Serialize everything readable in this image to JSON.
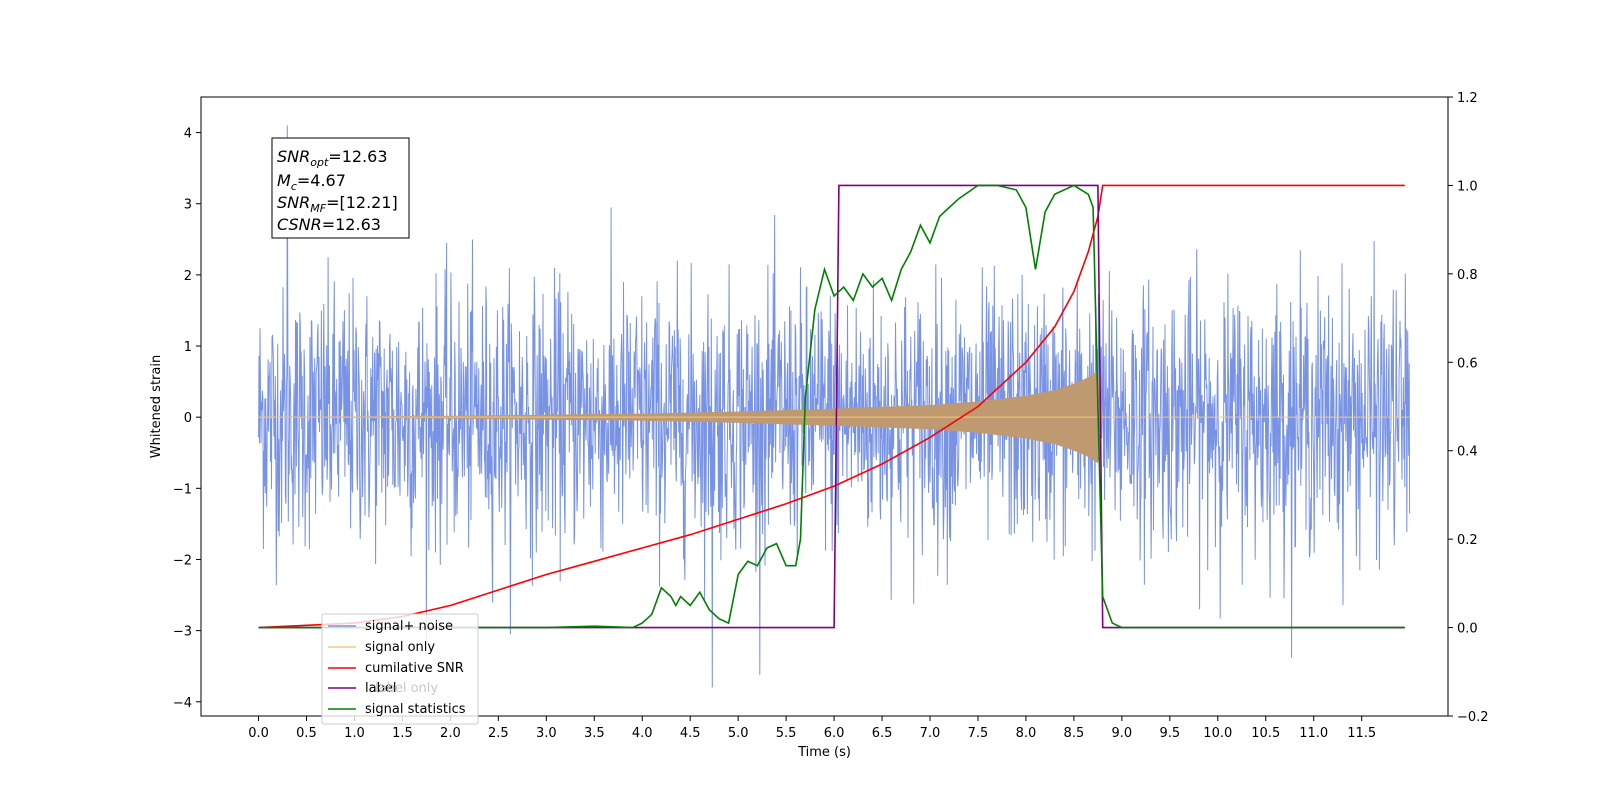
{
  "chart_data": {
    "type": "line",
    "title": "",
    "xlabel": "Time (s)",
    "ylabel": "Whitened strain",
    "xlim": [
      -0.6,
      12.4
    ],
    "ylim": [
      -4.2,
      4.5
    ],
    "y2lim": [
      -0.2,
      1.2
    ],
    "x_ticks": [
      0.0,
      0.5,
      1.0,
      1.5,
      2.0,
      2.5,
      3.0,
      3.5,
      4.0,
      4.5,
      5.0,
      5.5,
      6.0,
      6.5,
      7.0,
      7.5,
      8.0,
      8.5,
      9.0,
      9.5,
      10.0,
      10.5,
      11.0,
      11.5
    ],
    "x_tick_labels": [
      "0.0",
      "0.5",
      "1.0",
      "1.5",
      "2.0",
      "2.5",
      "3.0",
      "3.5",
      "4.0",
      "4.5",
      "5.0",
      "5.5",
      "6.0",
      "6.5",
      "7.0",
      "7.5",
      "8.0",
      "8.5",
      "9.0",
      "9.5",
      "10.0",
      "10.5",
      "11.0",
      "11.5"
    ],
    "y_ticks": [
      -4,
      -3,
      -2,
      -1,
      0,
      1,
      2,
      3,
      4
    ],
    "y_tick_labels": [
      "−4",
      "−3",
      "−2",
      "−1",
      "0",
      "1",
      "2",
      "3",
      "4"
    ],
    "y2_ticks": [
      -0.2,
      0.0,
      0.2,
      0.4,
      0.6,
      0.8,
      1.0,
      1.2
    ],
    "y2_tick_labels": [
      "−0.2",
      "0.0",
      "0.2",
      "0.4",
      "0.6",
      "0.8",
      "1.0",
      "1.2"
    ],
    "grid": false,
    "legend_position": "lower-left",
    "annotation": {
      "snr_opt": {
        "base": "SNR",
        "sub": "opt",
        "value": "=12.63"
      },
      "mc": {
        "base": "M",
        "sub": "c",
        "value": "=4.67"
      },
      "snr_mf": {
        "base": "SNR",
        "sub": "MF",
        "value": "=[12.21]"
      },
      "csnr": {
        "base": "CSNR",
        "value": "=12.63"
      }
    },
    "series": [
      {
        "name": "signal+ noise",
        "color": "#7893e6",
        "axis": "left",
        "noise_band_lower_sigma": 1.0,
        "noise_peak": 4.1,
        "noise_trough": -3.8,
        "x_range": [
          0.0,
          12.0
        ]
      },
      {
        "name": "signal only",
        "color": "#f5c77a",
        "axis": "left",
        "x": [
          0.0,
          1.0,
          2.0,
          3.0,
          4.0,
          5.0,
          6.0,
          7.0,
          7.5,
          8.0,
          8.3,
          8.5,
          8.65,
          8.75,
          8.8,
          12.0
        ],
        "envelope": [
          0.005,
          0.01,
          0.02,
          0.035,
          0.05,
          0.08,
          0.12,
          0.17,
          0.22,
          0.3,
          0.38,
          0.47,
          0.56,
          0.65,
          0.0,
          0.0
        ],
        "fill_color": "#bf9a71"
      },
      {
        "name": "cumilative SNR",
        "color": "#ff0000",
        "axis": "right",
        "x": [
          0.0,
          1.0,
          1.5,
          2.0,
          2.5,
          3.0,
          3.5,
          4.0,
          4.5,
          5.0,
          5.5,
          6.0,
          6.5,
          7.0,
          7.5,
          8.0,
          8.3,
          8.5,
          8.65,
          8.75,
          8.8,
          11.95
        ],
        "values": [
          0.0,
          0.01,
          0.025,
          0.05,
          0.085,
          0.12,
          0.15,
          0.18,
          0.21,
          0.245,
          0.28,
          0.32,
          0.37,
          0.43,
          0.5,
          0.6,
          0.68,
          0.76,
          0.85,
          0.93,
          1.0,
          1.0
        ]
      },
      {
        "name": "label",
        "color": "#800080",
        "axis": "right",
        "x": [
          0.0,
          6.0,
          6.05,
          8.75,
          8.8,
          11.95
        ],
        "values": [
          0.0,
          0.0,
          1.0,
          1.0,
          0.0,
          0.0
        ]
      },
      {
        "name": "label only",
        "color": "#ffffff",
        "axis": "right",
        "x": [],
        "values": []
      },
      {
        "name": "signal statistics",
        "color": "#008000",
        "axis": "right",
        "x": [
          0.0,
          3.0,
          3.5,
          3.9,
          4.0,
          4.1,
          4.2,
          4.3,
          4.35,
          4.4,
          4.5,
          4.6,
          4.7,
          4.8,
          4.9,
          5.0,
          5.1,
          5.2,
          5.3,
          5.4,
          5.5,
          5.6,
          5.65,
          5.7,
          5.8,
          5.9,
          6.0,
          6.1,
          6.2,
          6.3,
          6.4,
          6.5,
          6.6,
          6.7,
          6.8,
          6.9,
          7.0,
          7.1,
          7.2,
          7.3,
          7.5,
          7.7,
          7.9,
          8.0,
          8.1,
          8.2,
          8.3,
          8.5,
          8.65,
          8.7,
          8.75,
          8.8,
          8.9,
          9.0,
          9.5,
          11.95
        ],
        "values": [
          0.0,
          0.0,
          0.003,
          0.0,
          0.01,
          0.03,
          0.09,
          0.07,
          0.05,
          0.07,
          0.05,
          0.08,
          0.04,
          0.02,
          0.01,
          0.12,
          0.15,
          0.14,
          0.18,
          0.19,
          0.14,
          0.14,
          0.2,
          0.52,
          0.72,
          0.81,
          0.75,
          0.77,
          0.74,
          0.8,
          0.77,
          0.79,
          0.74,
          0.81,
          0.85,
          0.91,
          0.87,
          0.93,
          0.95,
          0.97,
          1.0,
          1.0,
          0.99,
          0.95,
          0.81,
          0.94,
          0.98,
          1.0,
          0.98,
          0.95,
          0.5,
          0.07,
          0.01,
          0.0,
          0.0,
          0.0
        ]
      }
    ]
  }
}
